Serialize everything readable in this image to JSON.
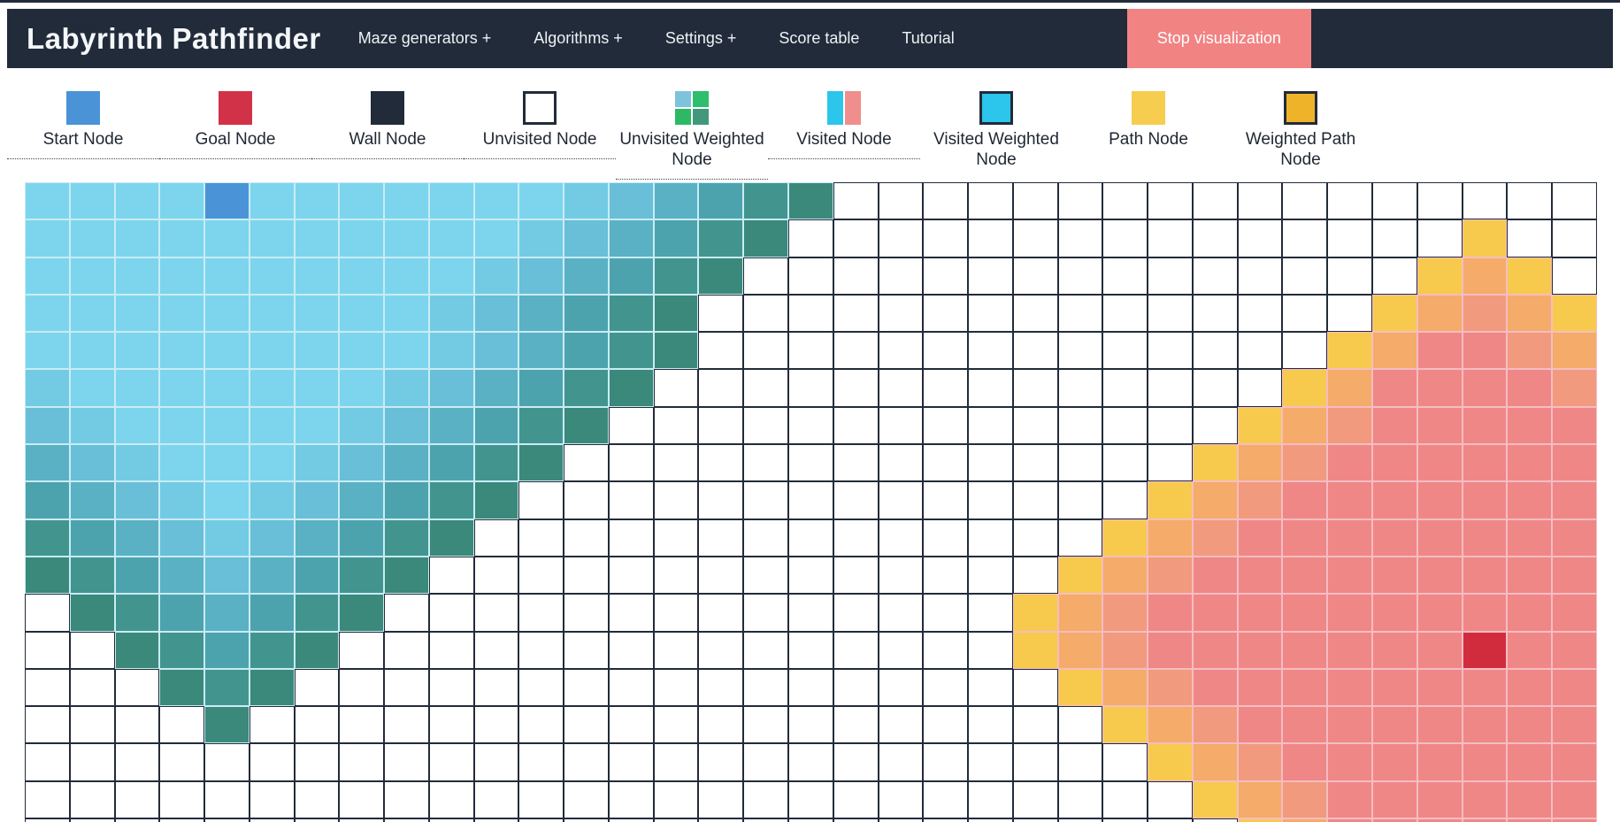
{
  "navbar": {
    "title": "Labyrinth Pathfinder",
    "items": [
      {
        "label": "Maze generators +"
      },
      {
        "label": "Algorithms +"
      },
      {
        "label": "Settings +"
      },
      {
        "label": "Score table"
      },
      {
        "label": "Tutorial"
      }
    ],
    "stop_button_label": "Stop visualization",
    "bg_color": "#222b3a",
    "stop_button_color": "#f28383"
  },
  "legend": {
    "items": [
      {
        "label": "Start Node",
        "icon": "start-node",
        "style": "simple",
        "colors": [
          "#4a93d6"
        ],
        "border": null,
        "dotted_underline": true
      },
      {
        "label": "Goal Node",
        "icon": "goal-node",
        "style": "simple",
        "colors": [
          "#d23247"
        ],
        "border": null,
        "dotted_underline": true
      },
      {
        "label": "Wall Node",
        "icon": "wall-node",
        "style": "simple",
        "colors": [
          "#222b3a"
        ],
        "border": null,
        "dotted_underline": true
      },
      {
        "label": "Unvisited Node",
        "icon": "unvisited-node",
        "style": "simple",
        "colors": [
          "#ffffff"
        ],
        "border": "#222b3a",
        "dotted_underline": true
      },
      {
        "label": "Unvisited Weighted Node",
        "icon": "unvisited-weighted-node",
        "style": "quad",
        "colors": [
          "#7ec3dc",
          "#2fbe6e",
          "#2db964",
          "#43987c"
        ],
        "border": null,
        "dotted_underline": true
      },
      {
        "label": "Visited Node",
        "icon": "visited-node",
        "style": "split",
        "colors": [
          "#2cc5ec",
          "#f08d8d"
        ],
        "border": null,
        "dotted_underline": true
      },
      {
        "label": "Visited Weighted Node",
        "icon": "visited-weighted-node",
        "style": "simple",
        "colors": [
          "#2cc5ec"
        ],
        "border": "#222b3a",
        "dotted_underline": false
      },
      {
        "label": "Path Node",
        "icon": "path-node",
        "style": "simple-dots",
        "colors": [
          "#f6cd4f"
        ],
        "border": null,
        "dotted_underline": false
      },
      {
        "label": "Weighted Path Node",
        "icon": "weighted-path-node",
        "style": "simple",
        "colors": [
          "#efb32a"
        ],
        "border": "#222b3a",
        "dotted_underline": false
      }
    ]
  },
  "grid": {
    "cols": 35,
    "rows": 18,
    "start_cell": {
      "row": 0,
      "col": 4
    },
    "goal_cell": {
      "row": 12,
      "col": 32
    },
    "cell_codes": [
      "0000S0000000123456.................",
      "00000000000123456...............y..",
      "0000000000123456...............yoy.",
      "000000000123456...............yopoy",
      "000000000123456..............yoaapo",
      "10000000123456..............yoaaaap",
      "2100000123456..............yopaaaaa",
      "321000123456..............yopaaaaaa",
      "43210123456..............yopaaaaaaa",
      "5432123456..............yopaaaaaaaa",
      "654323456..............yopaaaaaaaaa",
      ".6543456..............yopaaaaaaaaaa",
      "..65456...............yopaaaaaaaGaa",
      "...656.................yopaaaaaaaaa",
      "....6...................yopaaaaaaaa",
      ".........................yopaaaaaaa",
      "..........................yopaaaaaa",
      "...........................yoaaaaaa"
    ],
    "palette": {
      ".": "#ffffff",
      "S": "#4a93d6",
      "G": "#d02c3e",
      "0": "#7cd5ec",
      "1": "#73cbe3",
      "2": "#68bfd7",
      "3": "#5ab1c4",
      "4": "#4da3ad",
      "5": "#42958f",
      "6": "#3a897b",
      "y": "#f7ca4d",
      "o": "#f5ab69",
      "p": "#f29a7e",
      "a": "#ef8787"
    },
    "border_palette": {
      ".": "#222b3a",
      "S": "#c9ecf5",
      "G": "#f6bdc3",
      "0": "#c9ecf5",
      "1": "#c9ecf5",
      "2": "#c9ecf5",
      "3": "#c9ecf5",
      "4": "#c9ecf5",
      "5": "#c9ecf5",
      "6": "#c9ecf5",
      "y": "#f6bdc3",
      "o": "#f6bdc3",
      "p": "#f6bdc3",
      "a": "#f6bdc3"
    }
  }
}
